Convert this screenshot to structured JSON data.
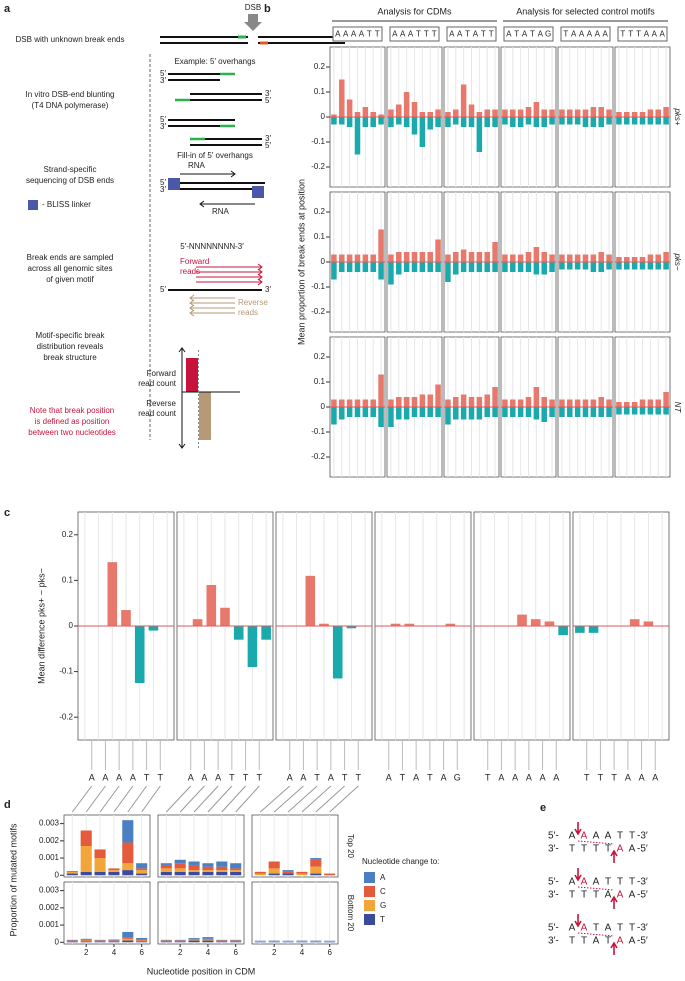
{
  "a": {
    "panel": "a",
    "dsb": "DSB",
    "p5": "5′",
    "p3": "3′",
    "step1": "DSB with unknown break ends",
    "example": "Example: 5′ overhangs",
    "step2a": "In vitro DSB-end blunting",
    "step2b": "(T4 DNA polymerase)",
    "fillin": "Fill-in of 5′ overhangs",
    "step3a": "Strand-specific",
    "step3b": "sequencing of DSB ends",
    "rna": "RNA",
    "linker": "- BLISS linker",
    "motif": "5′-NNNNNNNN-3′",
    "step4a": "Break ends are sampled",
    "step4b": "across all genomic sites",
    "step4c": "of given motif",
    "fwd": "Forward",
    "rev": "Reverse",
    "reads": "reads",
    "step5a": "Motif-specific break",
    "step5b": "distribution reveals",
    "step5c": "break structure",
    "readcount": "read count",
    "note1": "Note that break position",
    "note2": "is defined as position",
    "note3": "between two nucleotides"
  },
  "e": {
    "panel": "e",
    "ends": [
      "5′-",
      "-3′",
      "3′-",
      "-5′"
    ],
    "rows": [
      {
        "top": [
          "A",
          "A",
          "A",
          "A",
          "T",
          "T"
        ],
        "bottom": [
          "T",
          "T",
          "T",
          "T",
          "A",
          "A"
        ]
      },
      {
        "top": [
          "A",
          "A",
          "A",
          "T",
          "T",
          "T"
        ],
        "bottom": [
          "T",
          "T",
          "T",
          "A",
          "A",
          "A"
        ]
      },
      {
        "top": [
          "A",
          "A",
          "T",
          "A",
          "T",
          "T"
        ],
        "bottom": [
          "T",
          "T",
          "A",
          "T",
          "A",
          "A"
        ]
      }
    ]
  },
  "chart_data": [
    {
      "type": "diverging-bar",
      "panel": "b",
      "ylabel": "Mean proportion of break ends at position",
      "groups": [
        "Analysis for CDMs",
        "Analysis for selected control motifs"
      ],
      "motifs": [
        [
          "A",
          "A",
          "A",
          "A",
          "T",
          "T"
        ],
        [
          "A",
          "A",
          "A",
          "T",
          "T",
          "T"
        ],
        [
          "A",
          "A",
          "T",
          "A",
          "T",
          "T"
        ],
        [
          "A",
          "T",
          "A",
          "T",
          "A",
          "G"
        ],
        [
          "T",
          "A",
          "A",
          "A",
          "A",
          "A"
        ],
        [
          "T",
          "T",
          "T",
          "A",
          "A",
          "A"
        ]
      ],
      "ylim": [
        -0.28,
        0.28
      ],
      "yticks": [
        -0.2,
        -0.1,
        0,
        0.1,
        0.2
      ],
      "colors": {
        "forward": "#e8786c",
        "reverse": "#1aa9ac"
      },
      "rows": [
        {
          "label": "pks+",
          "forward": [
            [
              0.01,
              0.15,
              0.07,
              0.02,
              0.04,
              0.02,
              0.01
            ],
            [
              0.03,
              0.05,
              0.1,
              0.06,
              0.02,
              0.02,
              0.03
            ],
            [
              0.02,
              0.03,
              0.13,
              0.05,
              0.02,
              0.03,
              0.03
            ],
            [
              0.03,
              0.03,
              0.03,
              0.04,
              0.06,
              0.03,
              0.03
            ],
            [
              0.03,
              0.03,
              0.03,
              0.03,
              0.04,
              0.04,
              0.03
            ],
            [
              0.02,
              0.02,
              0.02,
              0.02,
              0.03,
              0.03,
              0.04
            ]
          ],
          "reverse": [
            [
              -0.03,
              -0.03,
              -0.04,
              -0.15,
              -0.04,
              -0.04,
              -0.03
            ],
            [
              -0.04,
              -0.03,
              -0.04,
              -0.07,
              -0.12,
              -0.05,
              -0.04
            ],
            [
              -0.04,
              -0.03,
              -0.04,
              -0.04,
              -0.14,
              -0.04,
              -0.04
            ],
            [
              -0.03,
              -0.04,
              -0.04,
              -0.03,
              -0.04,
              -0.04,
              -0.03
            ],
            [
              -0.03,
              -0.03,
              -0.03,
              -0.04,
              -0.04,
              -0.04,
              -0.03
            ],
            [
              -0.03,
              -0.03,
              -0.03,
              -0.03,
              -0.03,
              -0.03,
              -0.03
            ]
          ]
        },
        {
          "label": "pks−",
          "forward": [
            [
              0.03,
              0.03,
              0.03,
              0.03,
              0.03,
              0.03,
              0.13
            ],
            [
              0.03,
              0.04,
              0.04,
              0.04,
              0.04,
              0.04,
              0.09
            ],
            [
              0.03,
              0.04,
              0.05,
              0.04,
              0.04,
              0.04,
              0.08
            ],
            [
              0.03,
              0.03,
              0.03,
              0.04,
              0.06,
              0.04,
              0.03
            ],
            [
              0.03,
              0.03,
              0.03,
              0.03,
              0.03,
              0.04,
              0.03
            ],
            [
              0.02,
              0.02,
              0.02,
              0.02,
              0.03,
              0.03,
              0.04
            ]
          ],
          "reverse": [
            [
              -0.07,
              -0.04,
              -0.04,
              -0.04,
              -0.04,
              -0.04,
              -0.07
            ],
            [
              -0.09,
              -0.05,
              -0.04,
              -0.04,
              -0.04,
              -0.04,
              -0.04
            ],
            [
              -0.08,
              -0.05,
              -0.04,
              -0.04,
              -0.04,
              -0.04,
              -0.04
            ],
            [
              -0.04,
              -0.04,
              -0.04,
              -0.04,
              -0.05,
              -0.05,
              -0.04
            ],
            [
              -0.03,
              -0.03,
              -0.03,
              -0.03,
              -0.04,
              -0.04,
              -0.03
            ],
            [
              -0.03,
              -0.03,
              -0.03,
              -0.03,
              -0.03,
              -0.03,
              -0.03
            ]
          ]
        },
        {
          "label": "NT",
          "forward": [
            [
              0.03,
              0.03,
              0.03,
              0.03,
              0.03,
              0.03,
              0.13
            ],
            [
              0.03,
              0.04,
              0.04,
              0.04,
              0.05,
              0.05,
              0.09
            ],
            [
              0.03,
              0.04,
              0.05,
              0.04,
              0.04,
              0.05,
              0.08
            ],
            [
              0.03,
              0.03,
              0.03,
              0.04,
              0.08,
              0.04,
              0.03
            ],
            [
              0.03,
              0.03,
              0.03,
              0.03,
              0.03,
              0.04,
              0.03
            ],
            [
              0.02,
              0.02,
              0.02,
              0.03,
              0.03,
              0.03,
              0.06
            ]
          ],
          "reverse": [
            [
              -0.07,
              -0.05,
              -0.04,
              -0.04,
              -0.04,
              -0.04,
              -0.08
            ],
            [
              -0.08,
              -0.05,
              -0.05,
              -0.04,
              -0.04,
              -0.04,
              -0.04
            ],
            [
              -0.07,
              -0.05,
              -0.05,
              -0.05,
              -0.05,
              -0.04,
              -0.04
            ],
            [
              -0.04,
              -0.04,
              -0.04,
              -0.04,
              -0.05,
              -0.06,
              -0.04
            ],
            [
              -0.04,
              -0.04,
              -0.04,
              -0.04,
              -0.04,
              -0.04,
              -0.04
            ],
            [
              -0.03,
              -0.03,
              -0.03,
              -0.03,
              -0.03,
              -0.03,
              -0.03
            ]
          ]
        }
      ]
    },
    {
      "type": "bar",
      "panel": "c",
      "ylabel": "Mean difference pks+ − pks−",
      "ylim": [
        -0.25,
        0.25
      ],
      "yticks": [
        -0.2,
        -0.1,
        0,
        0.1,
        0.2
      ],
      "colors": {
        "positive": "#e8786c",
        "negative": "#1aa9ac"
      },
      "values": [
        [
          0,
          0,
          0.14,
          0.035,
          -0.125,
          -0.01,
          0
        ],
        [
          0,
          0.015,
          0.09,
          0.04,
          -0.03,
          -0.09,
          -0.03
        ],
        [
          0,
          0,
          0.11,
          0.005,
          -0.115,
          -0.005,
          0
        ],
        [
          0,
          0.005,
          0.005,
          0,
          0,
          0.005,
          0
        ],
        [
          0,
          0,
          0,
          0.025,
          0.015,
          0.01,
          -0.02
        ],
        [
          -0.015,
          -0.015,
          0,
          0,
          0.015,
          0.01,
          0
        ]
      ]
    },
    {
      "type": "stacked-bar",
      "panel": "d",
      "ylabel": "Proportion of mutated motifs",
      "xlabel": "Nucleotide position in CDM",
      "legend_title": "Nucleotide change to:",
      "rows": [
        "Top 20",
        "Bottom 20"
      ],
      "x": [
        1,
        2,
        3,
        4,
        5,
        6
      ],
      "xlim": [
        0.4,
        6.6
      ],
      "xticks": [
        2,
        4,
        6
      ],
      "ylim": [
        -0.0001,
        0.0035
      ],
      "yticks": [
        0,
        0.001,
        0.002,
        0.003
      ],
      "series": [
        {
          "name": "A",
          "color": "#4a7fc1",
          "values": [
            [
              [
                0,
                0,
                0,
                0,
                0.0013,
                0.0003
              ],
              [
                0.0001,
                0.0002,
                0.0002,
                0.0002,
                0.0003,
                0.0003
              ],
              [
                0,
                0,
                0.0001,
                0,
                0.0001,
                0
              ]
            ],
            [
              [
                3e-05,
                5e-05,
                3e-05,
                5e-05,
                0.0003,
                0.0001
              ],
              [
                3e-05,
                3e-05,
                5e-05,
                0.0001,
                3e-05,
                3e-05
              ],
              [
                2e-05,
                2e-05,
                2e-05,
                2e-05,
                2e-05,
                2e-05
              ]
            ]
          ]
        },
        {
          "name": "C",
          "color": "#e45a3c",
          "values": [
            [
              [
                5e-05,
                0.0009,
                0.0005,
                0.0001,
                0.0012,
                0.0001
              ],
              [
                0.0002,
                0.0003,
                0.0003,
                0.0002,
                0.0002,
                0.0001
              ],
              [
                0.0001,
                0.0004,
                0.0001,
                0.0001,
                0.0004,
                0.0001
              ]
            ],
            [
              [
                3e-05,
                5e-05,
                3e-05,
                3e-05,
                0.0001,
                5e-05
              ],
              [
                3e-05,
                3e-05,
                5e-05,
                5e-05,
                3e-05,
                3e-05
              ],
              [
                2e-05,
                3e-05,
                2e-05,
                3e-05,
                3e-05,
                2e-05
              ]
            ]
          ]
        },
        {
          "name": "G",
          "color": "#f2a63a",
          "values": [
            [
              [
                0.0001,
                0.0015,
                0.0008,
                0.0001,
                0.0004,
                0.0002
              ],
              [
                0.0002,
                0.0002,
                0.0001,
                0.0001,
                0.0001,
                0.0001
              ],
              [
                0.0001,
                0.0003,
                0,
                0.0001,
                0.0004,
                0
              ]
            ],
            [
              [
                3e-05,
                5e-05,
                3e-05,
                3e-05,
                0.0001,
                5e-05
              ],
              [
                3e-05,
                3e-05,
                5e-05,
                5e-05,
                3e-05,
                3e-05
              ],
              [
                2e-05,
                2e-05,
                2e-05,
                2e-05,
                2e-05,
                2e-05
              ]
            ]
          ]
        },
        {
          "name": "T",
          "color": "#3c4a9c",
          "values": [
            [
              [
                0.0001,
                0.0002,
                0.0002,
                0.0002,
                0.0003,
                0.0001
              ],
              [
                0.0002,
                0.0002,
                0.0002,
                0.0002,
                0.0002,
                0.0002
              ],
              [
                0,
                0.0001,
                0.0001,
                0,
                0.0001,
                0
              ]
            ],
            [
              [
                5e-05,
                5e-05,
                5e-05,
                5e-05,
                0.0001,
                5e-05
              ],
              [
                5e-05,
                5e-05,
                0.0001,
                0.0001,
                5e-05,
                5e-05
              ],
              [
                3e-05,
                3e-05,
                3e-05,
                3e-05,
                3e-05,
                3e-05
              ]
            ]
          ]
        }
      ]
    }
  ]
}
